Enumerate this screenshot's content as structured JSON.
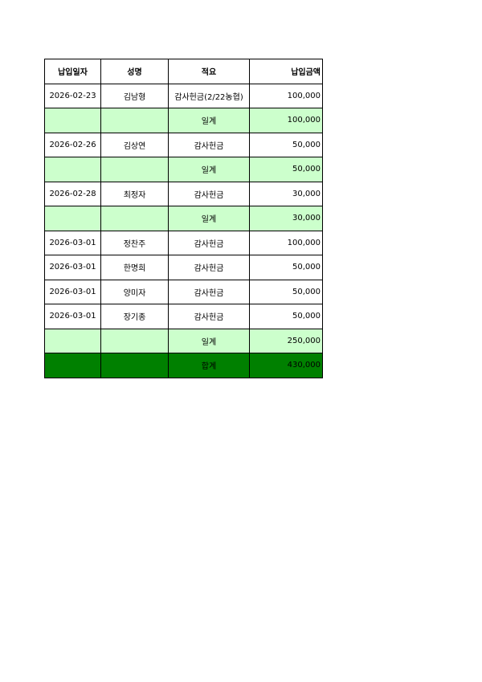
{
  "table": {
    "header": [
      "납입일자",
      "성명",
      "적요",
      "납입금액"
    ],
    "rows": [
      [
        "2026-02-23",
        "김남형",
        "감사헌금(2/22농협)",
        "100,000"
      ],
      [
        null,
        null,
        "일계",
        "100,000"
      ],
      [
        "2026-02-26",
        "김상연",
        "감사헌금",
        "50,000"
      ],
      [
        null,
        null,
        "일계",
        "50,000"
      ],
      [
        "2026-02-28",
        "최정자",
        "감사헌금",
        "30,000"
      ],
      [
        null,
        null,
        "일계",
        "30,000"
      ],
      [
        "2026-03-01",
        "정찬주",
        "감사헌금",
        "100,000"
      ],
      [
        "2026-03-01",
        "한명희",
        "감사헌금",
        "50,000"
      ],
      [
        "2026-03-01",
        "양미자",
        "감사헌금",
        "50,000"
      ],
      [
        "2026-03-01",
        "장기종",
        "감사헌금",
        "50,000"
      ],
      [
        null,
        null,
        "일계",
        "250,000"
      ],
      [
        null,
        null,
        "합계",
        "430,000"
      ]
    ]
  }
}
